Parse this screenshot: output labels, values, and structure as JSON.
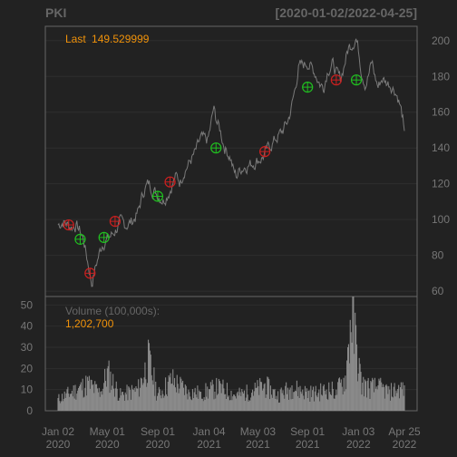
{
  "header": {
    "symbol": "PKI",
    "date_range": "[2020-01-02/2022-04-25]"
  },
  "colors": {
    "background": "#222222",
    "panel_border": "#666666",
    "grid": "#2e2e2e",
    "axis_text": "#777777",
    "header_text": "#666666",
    "price_line": "#7a7a7a",
    "volume_bar": "#8a8a8a",
    "accent": "#f0920a",
    "buy_marker": "#20c020",
    "sell_marker": "#cc2020"
  },
  "price_panel": {
    "last_label": "Last",
    "last_value": "149.529999",
    "y_ticks": [
      60,
      80,
      100,
      120,
      140,
      160,
      180,
      200
    ],
    "ylim": [
      57,
      208
    ]
  },
  "volume_panel": {
    "label": "Volume (100,000s):",
    "last_value": "1,202,700",
    "y_ticks": [
      0,
      10,
      20,
      30,
      40,
      50
    ],
    "ylim": [
      0,
      54
    ]
  },
  "chart_data": {
    "type": "line",
    "x_range": [
      "2020-01-02",
      "2022-04-25"
    ],
    "x_ticks": [
      {
        "date": "2020-01-02",
        "line1": "Jan 02",
        "line2": "2020"
      },
      {
        "date": "2020-05-01",
        "line1": "May 01",
        "line2": "2020"
      },
      {
        "date": "2020-09-01",
        "line1": "Sep 01",
        "line2": "2020"
      },
      {
        "date": "2021-01-04",
        "line1": "Jan 04",
        "line2": "2021"
      },
      {
        "date": "2021-05-03",
        "line1": "May 03",
        "line2": "2021"
      },
      {
        "date": "2021-09-01",
        "line1": "Sep 01",
        "line2": "2021"
      },
      {
        "date": "2022-01-03",
        "line1": "Jan 03",
        "line2": "2022"
      },
      {
        "date": "2022-04-25",
        "line1": "Apr 25",
        "line2": "2022"
      }
    ],
    "price_series": [
      [
        "2020-01-02",
        97
      ],
      [
        "2020-01-15",
        99
      ],
      [
        "2020-02-01",
        96
      ],
      [
        "2020-02-15",
        97
      ],
      [
        "2020-02-26",
        93
      ],
      [
        "2020-03-05",
        88
      ],
      [
        "2020-03-12",
        79
      ],
      [
        "2020-03-20",
        70
      ],
      [
        "2020-03-24",
        64
      ],
      [
        "2020-04-01",
        72
      ],
      [
        "2020-04-10",
        80
      ],
      [
        "2020-04-20",
        87
      ],
      [
        "2020-05-01",
        89
      ],
      [
        "2020-05-15",
        92
      ],
      [
        "2020-06-01",
        98
      ],
      [
        "2020-06-15",
        97
      ],
      [
        "2020-07-01",
        99
      ],
      [
        "2020-07-15",
        104
      ],
      [
        "2020-07-25",
        113
      ],
      [
        "2020-08-01",
        118
      ],
      [
        "2020-08-10",
        120
      ],
      [
        "2020-08-20",
        117
      ],
      [
        "2020-09-01",
        114
      ],
      [
        "2020-09-15",
        111
      ],
      [
        "2020-10-01",
        117
      ],
      [
        "2020-10-15",
        124
      ],
      [
        "2020-10-25",
        121
      ],
      [
        "2020-11-05",
        128
      ],
      [
        "2020-11-15",
        131
      ],
      [
        "2020-12-01",
        137
      ],
      [
        "2020-12-15",
        145
      ],
      [
        "2021-01-01",
        144
      ],
      [
        "2021-01-08",
        152
      ],
      [
        "2021-01-15",
        162
      ],
      [
        "2021-01-20",
        157
      ],
      [
        "2021-02-01",
        149
      ],
      [
        "2021-02-10",
        141
      ],
      [
        "2021-02-25",
        135
      ],
      [
        "2021-03-05",
        127
      ],
      [
        "2021-03-12",
        124
      ],
      [
        "2021-03-20",
        128
      ],
      [
        "2021-04-01",
        130
      ],
      [
        "2021-04-15",
        131
      ],
      [
        "2021-05-01",
        133
      ],
      [
        "2021-05-15",
        135
      ],
      [
        "2021-06-01",
        141
      ],
      [
        "2021-06-15",
        145
      ],
      [
        "2021-07-01",
        149
      ],
      [
        "2021-07-15",
        155
      ],
      [
        "2021-07-23",
        162
      ],
      [
        "2021-08-01",
        172
      ],
      [
        "2021-08-10",
        185
      ],
      [
        "2021-08-20",
        186
      ],
      [
        "2021-09-01",
        188
      ],
      [
        "2021-09-10",
        185
      ],
      [
        "2021-09-20",
        182
      ],
      [
        "2021-10-01",
        176
      ],
      [
        "2021-10-10",
        174
      ],
      [
        "2021-10-20",
        184
      ],
      [
        "2021-11-01",
        187
      ],
      [
        "2021-11-10",
        182
      ],
      [
        "2021-11-20",
        178
      ],
      [
        "2021-12-01",
        188
      ],
      [
        "2021-12-10",
        196
      ],
      [
        "2021-12-20",
        199
      ],
      [
        "2021-12-28",
        202
      ],
      [
        "2022-01-03",
        195
      ],
      [
        "2022-01-10",
        184
      ],
      [
        "2022-01-20",
        176
      ],
      [
        "2022-01-28",
        181
      ],
      [
        "2022-02-05",
        188
      ],
      [
        "2022-02-12",
        180
      ],
      [
        "2022-02-20",
        174
      ],
      [
        "2022-03-01",
        179
      ],
      [
        "2022-03-10",
        177
      ],
      [
        "2022-03-20",
        176
      ],
      [
        "2022-04-01",
        173
      ],
      [
        "2022-04-10",
        168
      ],
      [
        "2022-04-18",
        160
      ],
      [
        "2022-04-22",
        155
      ],
      [
        "2022-04-25",
        149.53
      ]
    ],
    "markers": [
      {
        "date": "2020-01-28",
        "price": 97,
        "type": "sell"
      },
      {
        "date": "2020-02-25",
        "price": 89,
        "type": "buy"
      },
      {
        "date": "2020-03-20",
        "price": 70,
        "type": "sell"
      },
      {
        "date": "2020-04-23",
        "price": 90,
        "type": "buy"
      },
      {
        "date": "2020-05-20",
        "price": 99,
        "type": "sell"
      },
      {
        "date": "2020-09-01",
        "price": 113,
        "type": "buy"
      },
      {
        "date": "2020-10-01",
        "price": 121,
        "type": "sell"
      },
      {
        "date": "2021-01-21",
        "price": 140,
        "type": "buy"
      },
      {
        "date": "2021-05-20",
        "price": 138,
        "type": "sell"
      },
      {
        "date": "2021-09-01",
        "price": 174,
        "type": "buy"
      },
      {
        "date": "2021-11-10",
        "price": 178,
        "type": "sell"
      },
      {
        "date": "2021-12-29",
        "price": 178,
        "type": "buy"
      }
    ],
    "volume_series": [
      [
        "2020-01-02",
        6
      ],
      [
        "2020-03-15",
        14
      ],
      [
        "2020-04-15",
        9
      ],
      [
        "2020-05-01",
        20
      ],
      [
        "2020-06-01",
        8
      ],
      [
        "2020-07-15",
        11
      ],
      [
        "2020-08-10",
        26
      ],
      [
        "2020-09-01",
        8
      ],
      [
        "2020-10-05",
        16
      ],
      [
        "2020-11-15",
        10
      ],
      [
        "2020-12-15",
        9
      ],
      [
        "2021-01-25",
        12
      ],
      [
        "2021-02-10",
        11
      ],
      [
        "2021-03-10",
        8
      ],
      [
        "2021-04-20",
        10
      ],
      [
        "2021-05-20",
        13
      ],
      [
        "2021-06-20",
        8
      ],
      [
        "2021-07-25",
        12
      ],
      [
        "2021-08-20",
        10
      ],
      [
        "2021-09-20",
        9
      ],
      [
        "2021-10-20",
        11
      ],
      [
        "2021-11-10",
        10
      ],
      [
        "2021-12-03",
        17
      ],
      [
        "2021-12-17",
        52
      ],
      [
        "2022-01-10",
        14
      ],
      [
        "2022-01-30",
        12
      ],
      [
        "2022-02-20",
        12
      ],
      [
        "2022-03-20",
        10
      ],
      [
        "2022-04-25",
        12.027
      ]
    ]
  }
}
